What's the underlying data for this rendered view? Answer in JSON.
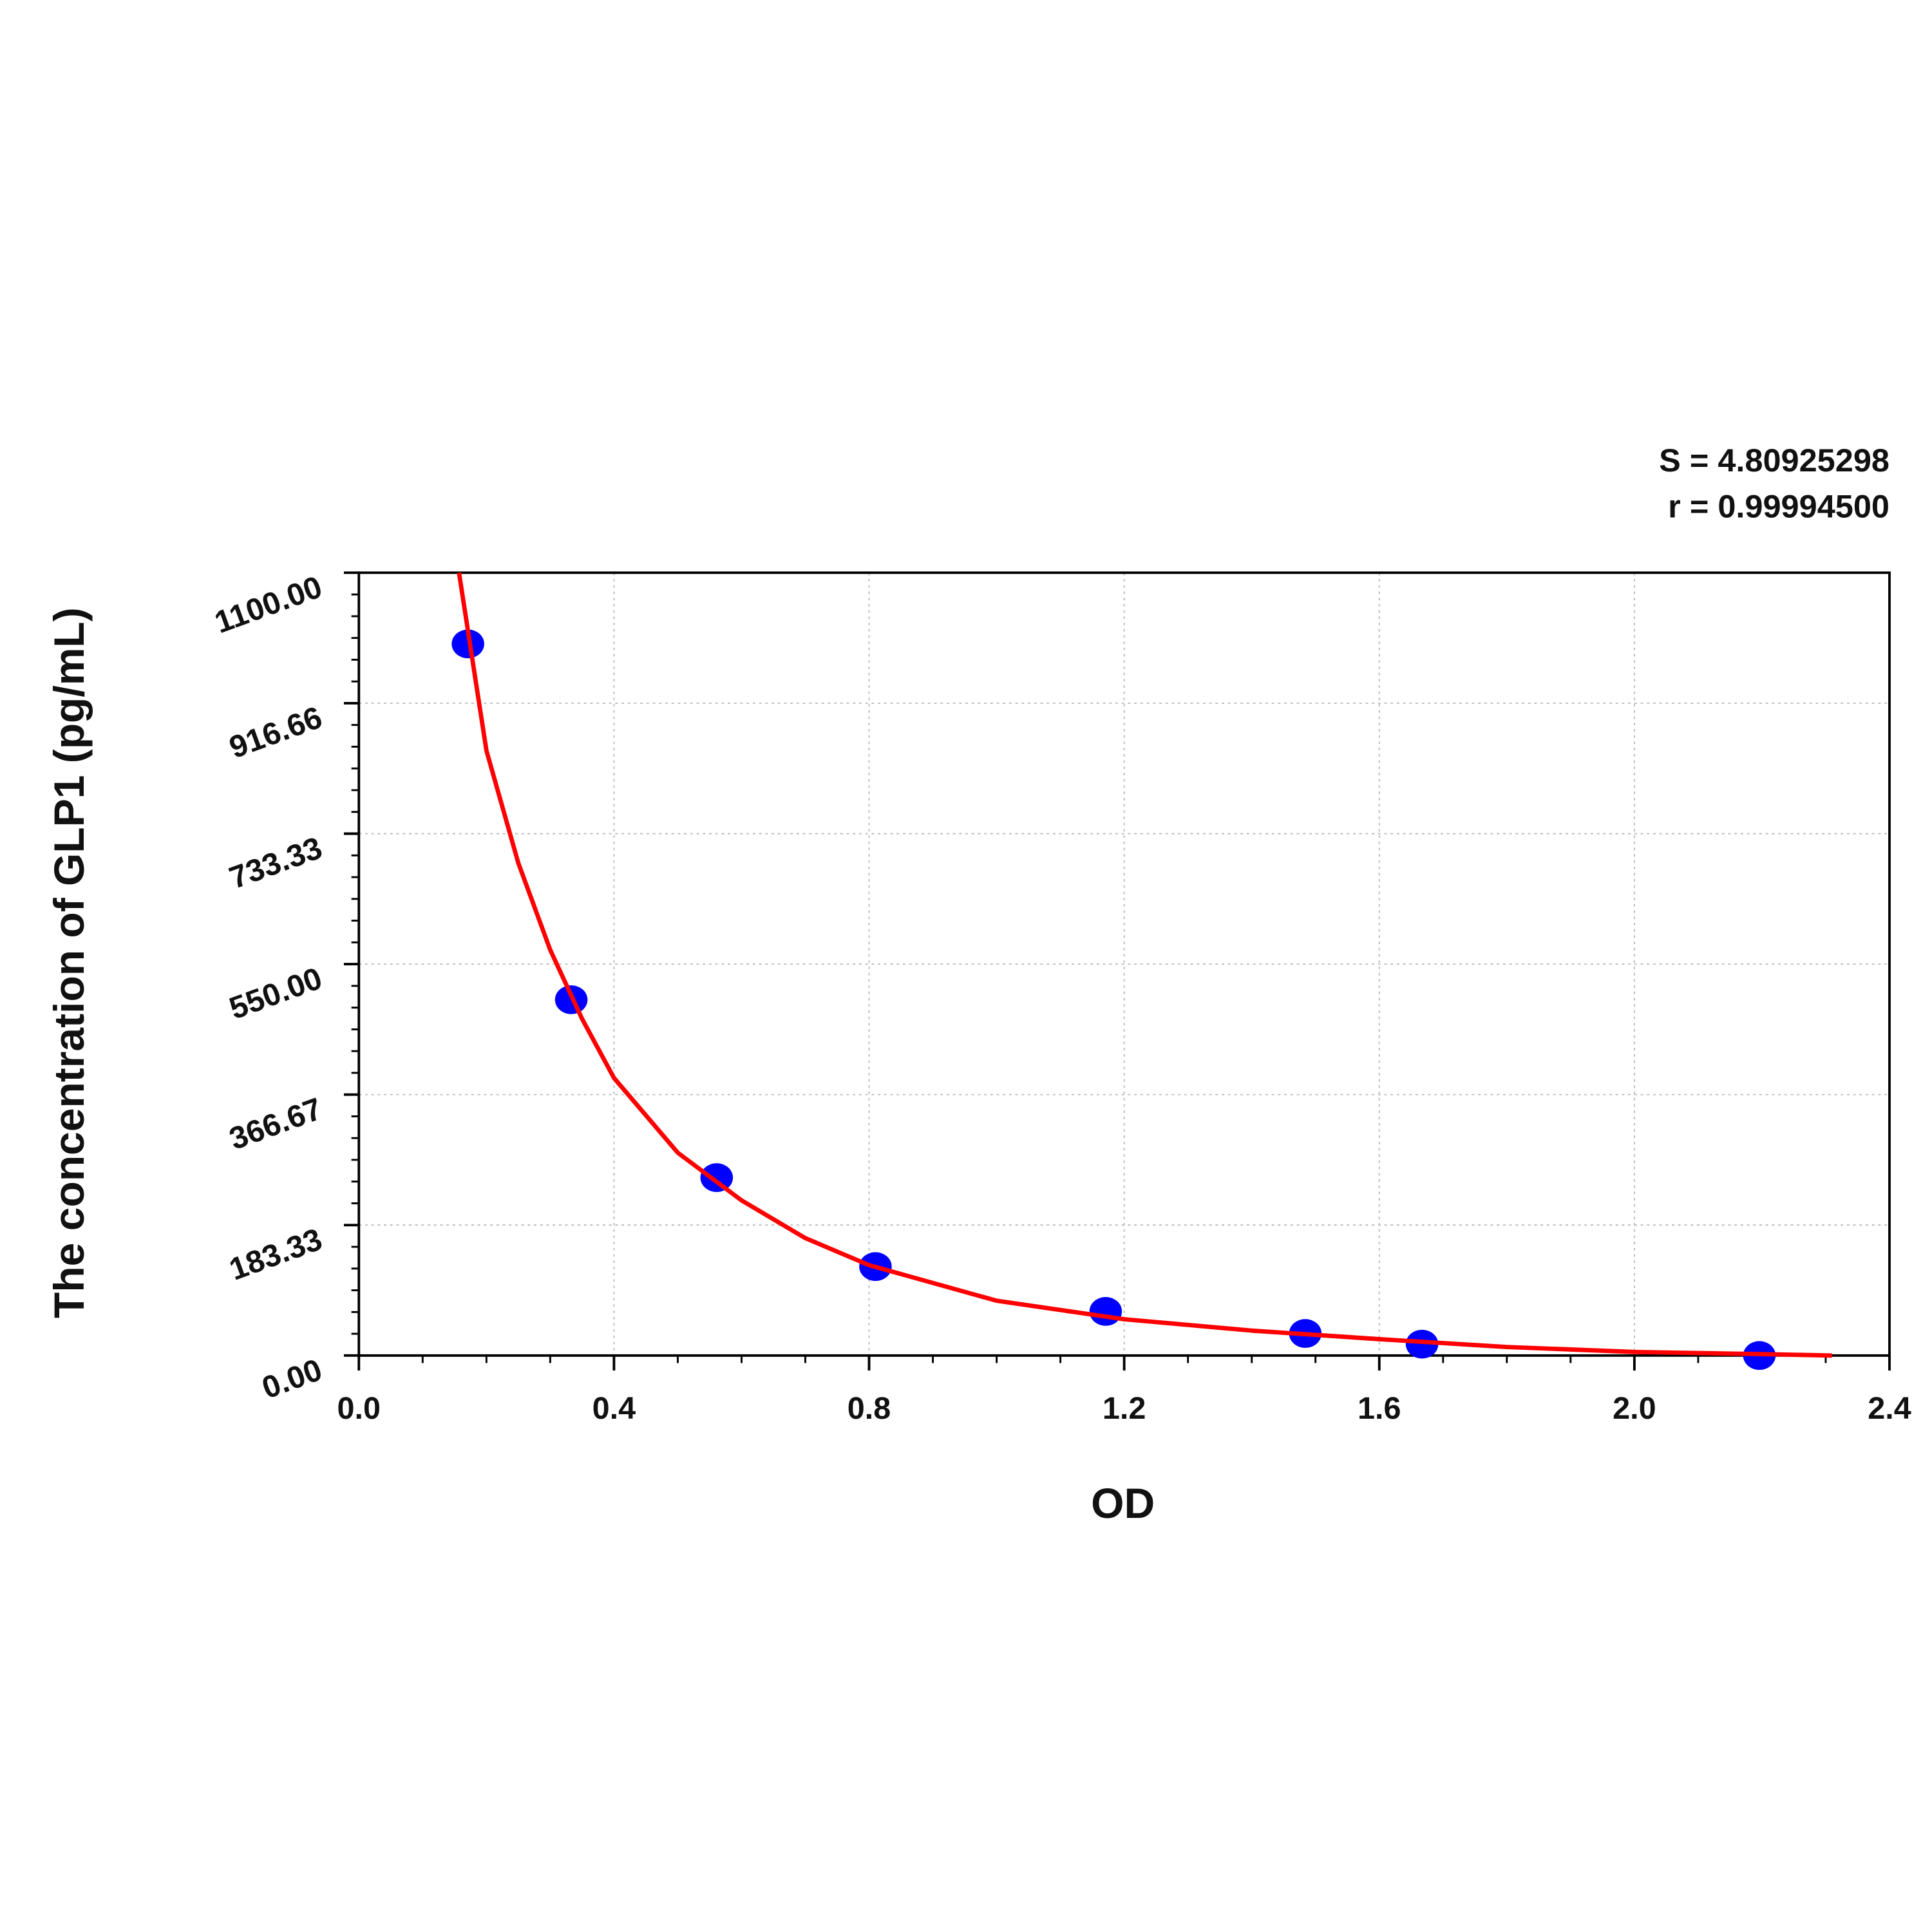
{
  "chart_data": {
    "type": "scatter",
    "x_label": "OD",
    "y_label": "The concentration of GLP1 (pg/mL)",
    "annotations": [
      "S = 4.80925298",
      "r = 0.99994500"
    ],
    "xlim": [
      0,
      2.4
    ],
    "ylim": [
      0,
      1100
    ],
    "xticks": [
      {
        "value": 0,
        "label": "0.0"
      },
      {
        "value": 0.4,
        "label": "0.4"
      },
      {
        "value": 0.8,
        "label": "0.8"
      },
      {
        "value": 1.2,
        "label": "1.2"
      },
      {
        "value": 1.6,
        "label": "1.6"
      },
      {
        "value": 2.0,
        "label": "2.0"
      },
      {
        "value": 2.4,
        "label": "2.4"
      }
    ],
    "yticks": [
      {
        "value": 0,
        "label": "0.00"
      },
      {
        "value": 183.33,
        "label": "183.33"
      },
      {
        "value": 366.67,
        "label": "366.67"
      },
      {
        "value": 550,
        "label": "550.00"
      },
      {
        "value": 733.33,
        "label": "733.33"
      },
      {
        "value": 916.66,
        "label": "916.66"
      },
      {
        "value": 1100,
        "label": "1100.00"
      }
    ],
    "grid": true,
    "series": [
      {
        "type": "scatter",
        "color": "#0000ff",
        "x": [
          0.171,
          0.333,
          0.561,
          0.81,
          1.171,
          1.484,
          1.667,
          2.196
        ],
        "values": [
          1000,
          500,
          250,
          125,
          62,
          31,
          16,
          0
        ]
      },
      {
        "type": "line",
        "color": "#ff0000",
        "x": [
          0.157,
          0.2,
          0.25,
          0.3,
          0.35,
          0.4,
          0.5,
          0.6,
          0.7,
          0.8,
          1.0,
          1.2,
          1.4,
          1.6,
          1.8,
          2.0,
          2.2,
          2.31
        ],
        "values": [
          1100,
          850,
          692,
          570,
          473,
          390,
          285,
          218,
          165,
          127,
          77,
          51,
          35,
          23,
          12,
          5,
          2,
          0
        ]
      }
    ]
  }
}
